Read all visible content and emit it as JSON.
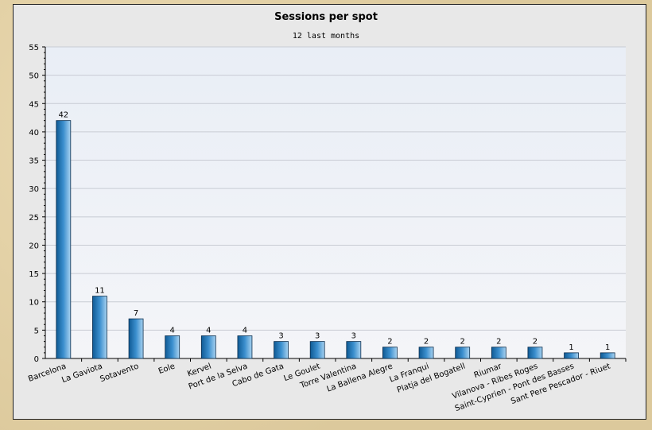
{
  "chart_data": {
    "type": "bar",
    "title": "Sessions per spot",
    "subtitle": "12 last months",
    "xlabel": "",
    "ylabel": "",
    "ylim": [
      0,
      55
    ],
    "yticks": [
      0,
      5,
      10,
      15,
      20,
      25,
      30,
      35,
      40,
      45,
      50,
      55
    ],
    "grid": true,
    "data_labels": true,
    "bar_color": "#2a7ab8",
    "categories": [
      "Barcelona",
      "La Gaviota",
      "Sotavento",
      "Eole",
      "Kervel",
      "Port de la Selva",
      "Cabo de Gata",
      "Le Goulet",
      "Torre Valentina",
      "La Ballena Alegre",
      "La Franqui",
      "Platja del Bogatell",
      "Riumar",
      "Vilanova - Ribes Roges",
      "Saint-Cyprien - Pont des Basses",
      "Sant Pere Pescador - Riuet"
    ],
    "values": [
      42,
      11,
      7,
      4,
      4,
      4,
      3,
      3,
      3,
      2,
      2,
      2,
      2,
      2,
      1,
      1
    ]
  }
}
